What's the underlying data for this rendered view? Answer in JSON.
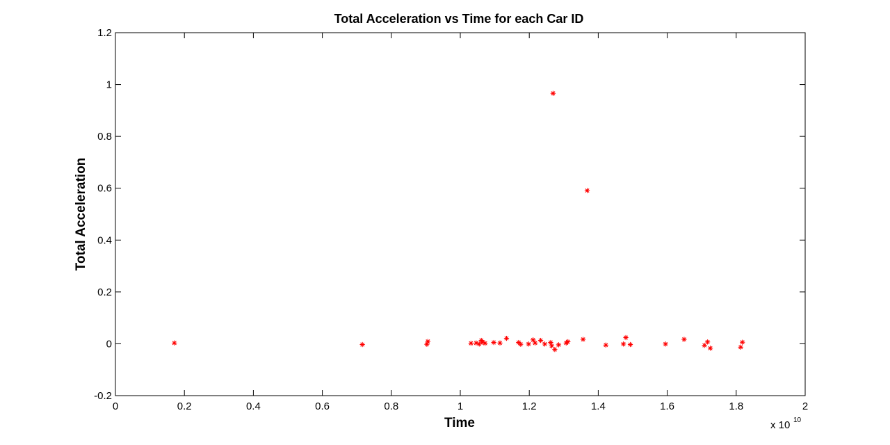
{
  "chart_data": {
    "type": "scatter",
    "title": "Total Acceleration vs Time for each Car ID",
    "xlabel": "Time",
    "ylabel": "Total Acceleration",
    "x_scale_multiplier_base": "x 10",
    "x_scale_multiplier_exponent": "10",
    "xlim": [
      0,
      2
    ],
    "ylim": [
      -0.2,
      1.2
    ],
    "x_ticks": [
      "0",
      "0.2",
      "0.4",
      "0.6",
      "0.8",
      "1",
      "1.2",
      "1.4",
      "1.6",
      "1.8",
      "2"
    ],
    "y_ticks": [
      "-0.2",
      "0",
      "0.2",
      "0.4",
      "0.6",
      "0.8",
      "1",
      "1.2"
    ],
    "grid": false,
    "marker": "*",
    "marker_color": "#ff0000",
    "axis_color": "#000000",
    "background": "#ffffff",
    "points": [
      [
        0.171,
        0.003
      ],
      [
        0.716,
        -0.003
      ],
      [
        0.903,
        -0.002
      ],
      [
        0.906,
        0.009
      ],
      [
        1.031,
        0.002
      ],
      [
        1.046,
        0.003
      ],
      [
        1.055,
        -0.001
      ],
      [
        1.061,
        0.013
      ],
      [
        1.065,
        0.006
      ],
      [
        1.072,
        0.002
      ],
      [
        1.097,
        0.005
      ],
      [
        1.115,
        0.003
      ],
      [
        1.134,
        0.021
      ],
      [
        1.169,
        0.005
      ],
      [
        1.175,
        -0.002
      ],
      [
        1.198,
        -0.001
      ],
      [
        1.211,
        0.015
      ],
      [
        1.217,
        0.003
      ],
      [
        1.233,
        0.013
      ],
      [
        1.245,
        -0.001
      ],
      [
        1.262,
        0.005
      ],
      [
        1.265,
        -0.008
      ],
      [
        1.269,
        0.966
      ],
      [
        1.274,
        -0.022
      ],
      [
        1.285,
        -0.004
      ],
      [
        1.307,
        0.003
      ],
      [
        1.312,
        0.008
      ],
      [
        1.356,
        0.017
      ],
      [
        1.368,
        0.591
      ],
      [
        1.422,
        -0.005
      ],
      [
        1.473,
        -0.001
      ],
      [
        1.48,
        0.024
      ],
      [
        1.493,
        -0.003
      ],
      [
        1.595,
        -0.001
      ],
      [
        1.649,
        0.017
      ],
      [
        1.708,
        -0.006
      ],
      [
        1.717,
        0.007
      ],
      [
        1.725,
        -0.017
      ],
      [
        1.813,
        -0.013
      ],
      [
        1.818,
        0.006
      ]
    ]
  }
}
